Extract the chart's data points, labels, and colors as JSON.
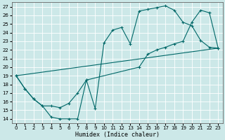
{
  "xlabel": "Humidex (Indice chaleur)",
  "bg_color": "#cce8e8",
  "grid_color": "#ffffff",
  "line_color": "#006868",
  "xlim": [
    -0.5,
    23.5
  ],
  "ylim": [
    13.5,
    27.5
  ],
  "xticks": [
    0,
    1,
    2,
    3,
    4,
    5,
    6,
    7,
    8,
    9,
    10,
    11,
    12,
    13,
    14,
    15,
    16,
    17,
    18,
    19,
    20,
    21,
    22,
    23
  ],
  "yticks": [
    14,
    15,
    16,
    17,
    18,
    19,
    20,
    21,
    22,
    23,
    24,
    25,
    26,
    27
  ],
  "line1_x": [
    0,
    1,
    2,
    3,
    4,
    5,
    6,
    7,
    8,
    9,
    10,
    11,
    12,
    13,
    14,
    15,
    16,
    17,
    18,
    19,
    20,
    21,
    22,
    23
  ],
  "line1_y": [
    19.0,
    17.5,
    16.3,
    15.5,
    14.2,
    14.0,
    14.0,
    14.0,
    18.5,
    15.2,
    22.8,
    24.3,
    24.6,
    22.7,
    26.5,
    26.7,
    26.9,
    27.1,
    26.6,
    25.2,
    24.8,
    23.1,
    22.3,
    22.2
  ],
  "line2_x": [
    0,
    1,
    2,
    3,
    4,
    5,
    6,
    7,
    8,
    14,
    15,
    16,
    17,
    18,
    19,
    20,
    21,
    22,
    23
  ],
  "line2_y": [
    19.0,
    17.5,
    16.3,
    15.5,
    15.5,
    15.3,
    15.8,
    17.0,
    18.5,
    20.0,
    21.5,
    22.0,
    22.3,
    22.7,
    23.0,
    25.2,
    26.6,
    26.3,
    22.2
  ],
  "line3_x": [
    0,
    23
  ],
  "line3_y": [
    19.0,
    22.2
  ],
  "figwidth": 3.2,
  "figheight": 2.0,
  "dpi": 100
}
